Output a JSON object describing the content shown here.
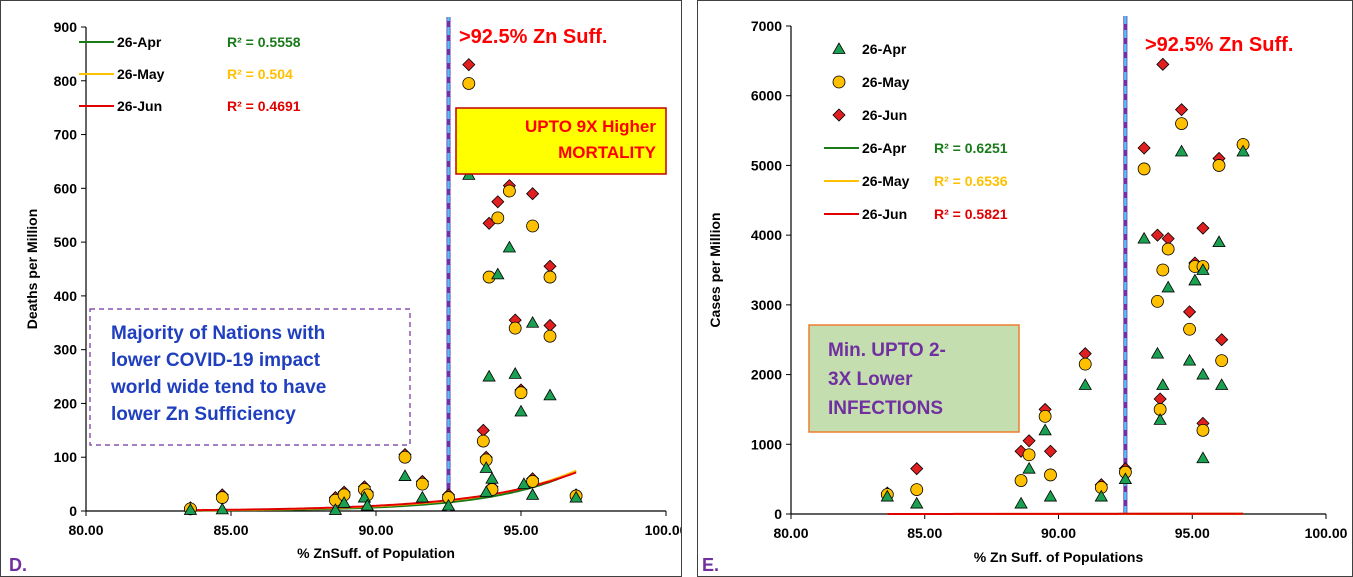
{
  "chart_data": [
    {
      "type": "scatter",
      "panel_label": "D.",
      "xlabel": "% ZnSuff. of Population",
      "ylabel": "Deaths per Million",
      "xlim": [
        80,
        100
      ],
      "ylim": [
        0,
        900
      ],
      "x_ticks": [
        "80.00",
        "85.00",
        "90.00",
        "95.00",
        "100.00"
      ],
      "y_ticks": [
        "0",
        "100",
        "200",
        "300",
        "400",
        "500",
        "600",
        "700",
        "800",
        "900"
      ],
      "threshold_x": 92.5,
      "threshold_label": ">92.5% Zn Suff.",
      "annotations": [
        {
          "key": "mortality",
          "lines": [
            "UPTO 9X Higher",
            "MORTALITY"
          ]
        },
        {
          "key": "majority",
          "lines": [
            "Majority of Nations with",
            "lower COVID-19 impact",
            "world wide tend to have",
            "lower Zn Sufficiency"
          ]
        }
      ],
      "legend": [
        {
          "kind": "line",
          "label": "26-Apr",
          "r2": "R² = 0.5558",
          "color": "#1a7a1a"
        },
        {
          "kind": "line",
          "label": "26-May",
          "r2": "R² = 0.504",
          "color": "#ffc000"
        },
        {
          "kind": "line",
          "label": "26-Jun",
          "r2": "R² = 0.4691",
          "color": "#e00000"
        }
      ],
      "series": [
        {
          "name": "26-Apr",
          "marker": "triangle",
          "color": "#1aa050",
          "x": [
            83.6,
            84.7,
            88.6,
            88.9,
            89.6,
            89.7,
            91.0,
            91.6,
            92.5,
            93.2,
            93.8,
            93.8,
            93.9,
            94.0,
            94.2,
            94.6,
            94.8,
            95.0,
            95.1,
            95.4,
            95.4,
            96.0,
            96.9
          ],
          "y": [
            2,
            3,
            2,
            15,
            25,
            10,
            65,
            25,
            10,
            625,
            80,
            35,
            250,
            60,
            440,
            490,
            255,
            185,
            50,
            350,
            30,
            215,
            25
          ],
          "trend": {
            "a": 1.6e-13,
            "b": 0.3485
          }
        },
        {
          "name": "26-May",
          "marker": "circle",
          "color": "#ffc000",
          "x": [
            83.6,
            84.7,
            88.6,
            88.9,
            89.6,
            89.7,
            91.0,
            91.6,
            92.5,
            93.2,
            93.7,
            93.8,
            93.9,
            94.0,
            94.2,
            94.6,
            94.8,
            95.0,
            95.4,
            95.4,
            96.0,
            96.0,
            96.9
          ],
          "y": [
            4,
            25,
            20,
            30,
            40,
            30,
            100,
            50,
            25,
            795,
            130,
            95,
            435,
            40,
            545,
            595,
            340,
            220,
            530,
            55,
            325,
            435,
            28
          ],
          "trend": {
            "a": 6.5e-12,
            "b": 0.3104
          }
        },
        {
          "name": "26-Jun",
          "marker": "diamond",
          "color": "#e02020",
          "x": [
            83.6,
            84.7,
            88.6,
            88.9,
            89.6,
            89.7,
            91.0,
            91.6,
            92.5,
            93.2,
            93.7,
            93.8,
            93.9,
            94.0,
            94.2,
            94.6,
            94.8,
            95.0,
            95.4,
            95.4,
            96.0,
            96.0,
            96.9
          ],
          "y": [
            6,
            30,
            25,
            35,
            45,
            35,
            105,
            55,
            30,
            830,
            150,
            100,
            535,
            45,
            575,
            605,
            355,
            225,
            590,
            60,
            345,
            455,
            30
          ],
          "trend": {
            "a": 4.8e-11,
            "b": 0.2893
          }
        }
      ]
    },
    {
      "type": "scatter",
      "panel_label": "E.",
      "xlabel": "% Zn Suff. of Populations",
      "ylabel": "Cases per Million",
      "xlim": [
        80,
        100
      ],
      "ylim": [
        0,
        7000
      ],
      "x_ticks": [
        "80.00",
        "85.00",
        "90.00",
        "95.00",
        "100.00"
      ],
      "y_ticks": [
        "0",
        "1000",
        "2000",
        "3000",
        "4000",
        "5000",
        "6000",
        "7000"
      ],
      "threshold_x": 92.5,
      "threshold_label": ">92.5% Zn Suff.",
      "annotations": [
        {
          "key": "infections",
          "lines": [
            "Min. UPTO 2-",
            "3X Lower",
            "INFECTIONS"
          ]
        }
      ],
      "legend": [
        {
          "kind": "marker",
          "marker": "triangle",
          "label": "26-Apr",
          "color": "#1aa050"
        },
        {
          "kind": "marker",
          "marker": "circle",
          "label": "26-May",
          "color": "#ffc000"
        },
        {
          "kind": "marker",
          "marker": "diamond",
          "label": "26-Jun",
          "color": "#e02020"
        },
        {
          "kind": "line",
          "label": "26-Apr",
          "r2": "R² = 0.6251",
          "color": "#1a7a1a"
        },
        {
          "kind": "line",
          "label": "26-May",
          "r2": "R² = 0.6536",
          "color": "#ffc000"
        },
        {
          "kind": "line",
          "label": "26-Jun",
          "r2": "R² = 0.5821",
          "color": "#e00000"
        }
      ],
      "series": [
        {
          "name": "26-Apr",
          "marker": "triangle",
          "color": "#1aa050",
          "x": [
            83.6,
            84.7,
            88.6,
            88.9,
            89.5,
            89.7,
            91.0,
            91.6,
            92.5,
            93.2,
            93.7,
            93.8,
            93.9,
            94.1,
            94.6,
            94.9,
            95.1,
            95.4,
            95.4,
            95.4,
            96.0,
            96.1,
            96.9
          ],
          "y": [
            250,
            150,
            150,
            650,
            1200,
            250,
            1850,
            250,
            500,
            3950,
            2300,
            1350,
            1850,
            3250,
            5200,
            2200,
            3350,
            800,
            2000,
            3500,
            3900,
            1850,
            5200
          ],
          "trend": {
            "a": 8.1e-11,
            "b": 0.2543
          }
        },
        {
          "name": "26-May",
          "marker": "circle",
          "color": "#ffc000",
          "x": [
            83.6,
            84.7,
            88.6,
            88.9,
            89.5,
            89.7,
            91.0,
            91.6,
            92.5,
            93.2,
            93.7,
            93.8,
            93.9,
            94.1,
            94.6,
            94.9,
            95.1,
            95.4,
            95.4,
            96.0,
            96.1,
            96.9
          ],
          "y": [
            280,
            350,
            480,
            850,
            1400,
            560,
            2150,
            380,
            600,
            4950,
            3050,
            1500,
            3500,
            3800,
            5600,
            2650,
            3550,
            1200,
            3550,
            5000,
            2200,
            5300
          ],
          "trend": {
            "a": 8.4e-09,
            "b": 0.2081
          }
        },
        {
          "name": "26-Jun",
          "marker": "diamond",
          "color": "#e02020",
          "x": [
            83.6,
            84.7,
            88.6,
            88.9,
            89.5,
            89.7,
            91.0,
            91.6,
            92.5,
            93.2,
            93.7,
            93.8,
            93.9,
            94.1,
            94.6,
            94.9,
            95.1,
            95.4,
            95.4,
            96.0,
            96.1,
            96.9
          ],
          "y": [
            300,
            650,
            900,
            1050,
            1500,
            900,
            2300,
            420,
            650,
            5250,
            4000,
            1650,
            6450,
            3950,
            5800,
            2900,
            3600,
            1300,
            4100,
            5100,
            2500,
            5300
          ],
          "trend": {
            "a": 1.55e-07,
            "b": 0.1783
          }
        }
      ]
    }
  ]
}
